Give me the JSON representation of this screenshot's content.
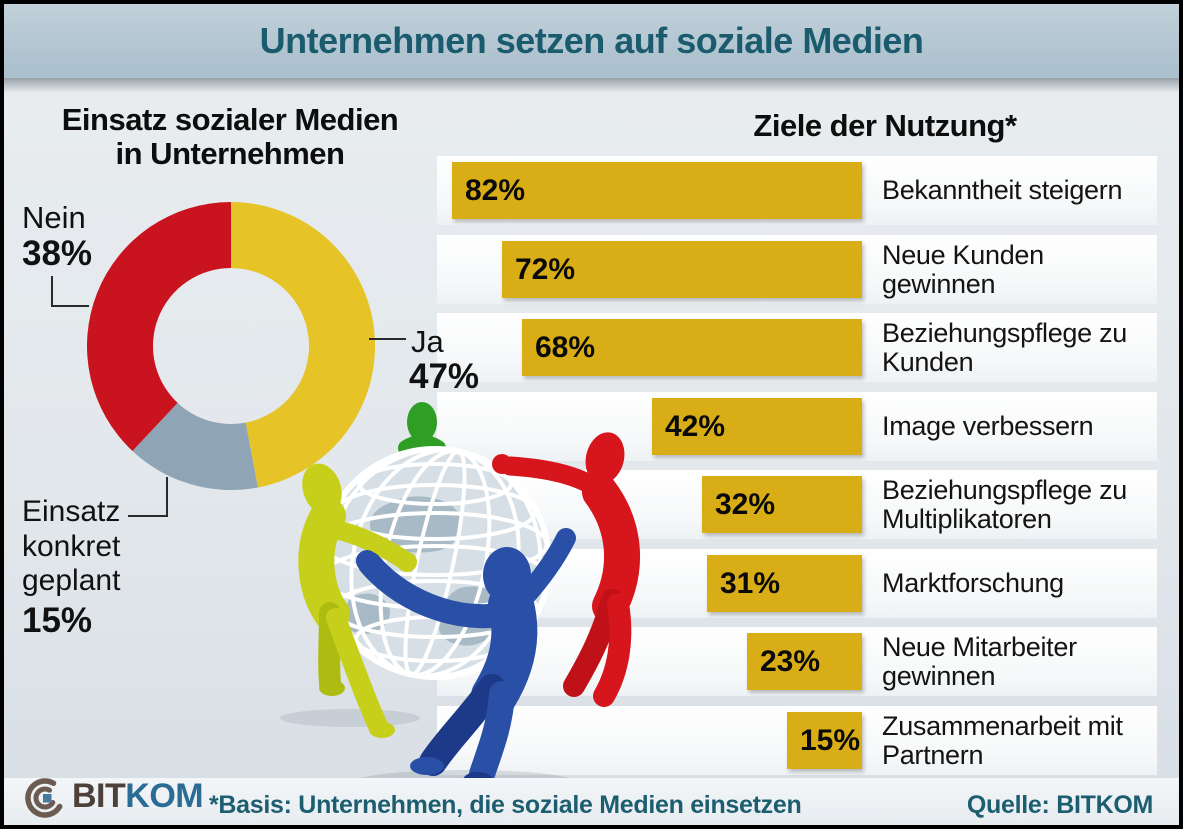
{
  "header": {
    "title": "Unternehmen setzen auf soziale Medien"
  },
  "donut": {
    "title_line1": "Einsatz sozialer Medien",
    "title_line2": "in Unternehmen",
    "segments": [
      {
        "label": "Ja",
        "value": "47%",
        "pct": 47,
        "color": "#e6c327"
      },
      {
        "label": "Einsatz konkret geplant",
        "value": "15%",
        "pct": 15,
        "color": "#8fa5b5"
      },
      {
        "label": "Nein",
        "value": "38%",
        "pct": 38,
        "color": "#c9141f"
      }
    ]
  },
  "goals": {
    "title": "Ziele der Nutzung*",
    "bar_color": "#d9ad16",
    "items": [
      {
        "label": "Bekanntheit steigern",
        "value": "82%",
        "pct": 82
      },
      {
        "label": "Neue Kunden gewinnen",
        "value": "72%",
        "pct": 72
      },
      {
        "label": "Beziehungspflege zu Kunden",
        "value": "68%",
        "pct": 68
      },
      {
        "label": "Image verbessern",
        "value": "42%",
        "pct": 42
      },
      {
        "label": "Beziehungspflege zu Multiplikatoren",
        "value": "32%",
        "pct": 32
      },
      {
        "label": "Marktforschung",
        "value": "31%",
        "pct": 31
      },
      {
        "label": "Neue Mitarbeiter gewinnen",
        "value": "23%",
        "pct": 23
      },
      {
        "label": "Zusammenarbeit mit Partnern",
        "value": "15%",
        "pct": 15
      }
    ]
  },
  "footer": {
    "logo_bit": "BIT",
    "logo_kom": "KOM",
    "footnote": "*Basis: Unternehmen, die soziale Medien einsetzen",
    "source": "Quelle: BITKOM"
  },
  "chart_data": [
    {
      "type": "pie",
      "style": "donut",
      "title": "Einsatz sozialer Medien in Unternehmen",
      "labels": [
        "Ja",
        "Einsatz konkret geplant",
        "Nein"
      ],
      "values": [
        47,
        15,
        38
      ],
      "unit": "%",
      "colors": [
        "#e6c327",
        "#8fa5b5",
        "#c9141f"
      ],
      "start_angle": "12 o'clock, clockwise"
    },
    {
      "type": "bar",
      "orientation": "horizontal",
      "bars_right_aligned": true,
      "title": "Ziele der Nutzung*",
      "categories": [
        "Bekanntheit steigern",
        "Neue Kunden gewinnen",
        "Beziehungspflege zu Kunden",
        "Image verbessern",
        "Beziehungspflege zu Multiplikatoren",
        "Marktforschung",
        "Neue Mitarbeiter gewinnen",
        "Zusammenarbeit mit Partnern"
      ],
      "values": [
        82,
        72,
        68,
        42,
        32,
        31,
        23,
        15
      ],
      "unit": "%",
      "xlim": [
        0,
        100
      ],
      "bar_color": "#d9ad16",
      "footnote": "*Basis: Unternehmen, die soziale Medien einsetzen",
      "source": "Quelle: BITKOM"
    }
  ]
}
